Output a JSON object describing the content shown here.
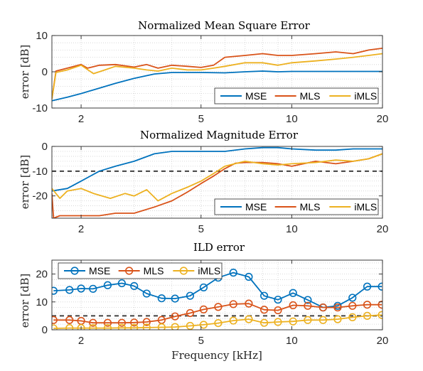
{
  "figure": {
    "xlabel": "Frequency [kHz]",
    "xtick_labels": [
      "2",
      "5",
      "10",
      "20"
    ],
    "colors": {
      "MSE": "#0072BD",
      "MLS": "#D95319",
      "iMLS": "#EDB120",
      "threshold": "#404040",
      "grid": "#d0d0d0"
    }
  },
  "chart_data": [
    {
      "type": "line",
      "title": "Normalized Mean Square Error",
      "ylabel": "error [dB]",
      "xscale": "log",
      "xlim": [
        1.6,
        20
      ],
      "ylim": [
        -10,
        10
      ],
      "yticks": [
        -10,
        0,
        10
      ],
      "ytick_labels": [
        "-10",
        "0",
        "10"
      ],
      "xticks": [
        2,
        5,
        10,
        20
      ],
      "grid": true,
      "legend": {
        "placement": "bottom-right",
        "orientation": "horizontal",
        "entries": [
          "MSE",
          "MLS",
          "iMLS"
        ]
      },
      "series": [
        {
          "name": "MSE",
          "x": [
            1.6,
            1.8,
            2.0,
            2.3,
            2.6,
            3.0,
            3.5,
            4.0,
            5.0,
            6.0,
            7.0,
            8.0,
            9.0,
            10.0,
            12.0,
            14.0,
            16.0,
            18.0,
            20.0
          ],
          "y": [
            -8.0,
            -7.0,
            -6.0,
            -4.5,
            -3.2,
            -1.8,
            -0.6,
            -0.2,
            -0.2,
            -0.3,
            0.0,
            0.2,
            0.0,
            0.1,
            0.1,
            0.1,
            0.1,
            0.1,
            0.1
          ]
        },
        {
          "name": "MLS",
          "x": [
            1.6,
            1.65,
            1.8,
            2.0,
            2.1,
            2.3,
            2.6,
            3.0,
            3.3,
            3.6,
            4.0,
            4.5,
            5.0,
            5.5,
            6.0,
            7.0,
            8.0,
            9.0,
            10.0,
            12.0,
            14.0,
            16.0,
            18.0,
            20.0
          ],
          "y": [
            -7.5,
            0.2,
            1.0,
            2.0,
            1.0,
            1.8,
            2.0,
            1.3,
            2.0,
            1.0,
            1.8,
            1.5,
            1.2,
            1.8,
            4.0,
            4.5,
            5.0,
            4.5,
            4.5,
            5.0,
            5.5,
            5.0,
            6.0,
            6.5
          ]
        },
        {
          "name": "iMLS",
          "x": [
            1.6,
            1.65,
            1.8,
            2.0,
            2.2,
            2.4,
            2.6,
            3.0,
            3.3,
            3.6,
            4.0,
            4.5,
            5.0,
            5.5,
            6.0,
            7.0,
            8.0,
            9.0,
            10.0,
            12.0,
            14.0,
            16.0,
            18.0,
            20.0
          ],
          "y": [
            -7.5,
            -0.2,
            0.5,
            1.8,
            -0.5,
            0.5,
            1.5,
            1.0,
            0.5,
            0.2,
            1.0,
            0.5,
            0.5,
            1.0,
            1.5,
            2.5,
            2.5,
            1.8,
            2.5,
            3.0,
            3.5,
            4.0,
            4.5,
            5.0
          ]
        }
      ]
    },
    {
      "type": "line",
      "title": "Normalized Magnitude Error",
      "ylabel": "error [dB]",
      "xscale": "log",
      "xlim": [
        1.6,
        20
      ],
      "ylim": [
        -29,
        0
      ],
      "yticks": [
        -20,
        -10,
        0
      ],
      "ytick_labels": [
        "-20",
        "-10",
        "0"
      ],
      "xticks": [
        2,
        5,
        10,
        20
      ],
      "grid": true,
      "threshold": -10,
      "legend": {
        "placement": "bottom-right",
        "orientation": "horizontal",
        "entries": [
          "MSE",
          "MLS",
          "iMLS"
        ]
      },
      "series": [
        {
          "name": "MSE",
          "x": [
            1.6,
            1.8,
            2.0,
            2.3,
            2.6,
            3.0,
            3.5,
            4.0,
            5.0,
            6.0,
            7.0,
            8.0,
            9.0,
            10.0,
            12.0,
            14.0,
            16.0,
            18.0,
            20.0
          ],
          "y": [
            -18.0,
            -17.0,
            -14.0,
            -10.0,
            -8.0,
            -6.0,
            -3.0,
            -2.0,
            -2.0,
            -2.0,
            -1.0,
            -0.5,
            -0.5,
            -1.0,
            -1.5,
            -1.5,
            -1.0,
            -1.0,
            -1.0
          ]
        },
        {
          "name": "MLS",
          "x": [
            1.6,
            1.62,
            1.7,
            2.0,
            2.3,
            2.6,
            3.0,
            3.5,
            4.0,
            4.5,
            5.0,
            5.5,
            6.0,
            6.5,
            7.0,
            8.0,
            9.0,
            10.0,
            12.0,
            14.0,
            16.0,
            18.0,
            20.0
          ],
          "y": [
            -19.0,
            -29.0,
            -28.0,
            -28.0,
            -28.0,
            -27.0,
            -27.0,
            -24.5,
            -22.0,
            -18.5,
            -15.0,
            -12.0,
            -9.0,
            -6.8,
            -6.5,
            -6.5,
            -7.0,
            -8.0,
            -6.0,
            -7.0,
            -6.0,
            -5.0,
            -3.0
          ]
        },
        {
          "name": "iMLS",
          "x": [
            1.6,
            1.7,
            1.8,
            2.0,
            2.2,
            2.5,
            2.8,
            3.0,
            3.3,
            3.6,
            4.0,
            4.5,
            5.0,
            5.5,
            6.0,
            7.0,
            8.0,
            9.0,
            10.0,
            12.0,
            14.0,
            16.0,
            18.0,
            20.0
          ],
          "y": [
            -17.0,
            -21.0,
            -18.0,
            -17.0,
            -19.0,
            -21.0,
            -19.0,
            -20.0,
            -17.5,
            -22.0,
            -19.0,
            -16.5,
            -14.0,
            -11.0,
            -8.0,
            -6.0,
            -7.0,
            -7.5,
            -7.0,
            -6.5,
            -5.5,
            -6.0,
            -5.0,
            -3.0
          ]
        }
      ]
    },
    {
      "type": "line",
      "title": "ILD error",
      "ylabel": "error [dB]",
      "xscale": "log",
      "xlim": [
        1.6,
        20
      ],
      "ylim": [
        0,
        25
      ],
      "yticks": [
        0,
        10,
        20
      ],
      "ytick_labels": [
        "0",
        "10",
        "20"
      ],
      "xticks": [
        2,
        5,
        10,
        20
      ],
      "grid": true,
      "markers": "circle",
      "threshold": 5,
      "legend": {
        "placement": "top-left",
        "orientation": "horizontal",
        "entries": [
          "MSE",
          "MLS",
          "iMLS"
        ]
      },
      "series": [
        {
          "name": "MSE",
          "x": [
            1.62,
            1.83,
            2.0,
            2.19,
            2.45,
            2.73,
            3.0,
            3.3,
            3.7,
            4.1,
            4.6,
            5.1,
            5.7,
            6.4,
            7.2,
            8.1,
            9.0,
            10.1,
            11.3,
            12.7,
            14.2,
            15.9,
            17.8,
            19.9
          ],
          "y": [
            14.0,
            14.3,
            14.8,
            14.7,
            16.0,
            16.7,
            15.7,
            13.0,
            11.3,
            11.2,
            12.2,
            15.2,
            18.7,
            20.5,
            19.0,
            12.2,
            10.8,
            13.2,
            10.7,
            8.0,
            8.6,
            11.5,
            15.5,
            15.5
          ]
        },
        {
          "name": "MLS",
          "x": [
            1.62,
            1.83,
            2.0,
            2.19,
            2.45,
            2.73,
            3.0,
            3.3,
            3.7,
            4.1,
            4.6,
            5.1,
            5.7,
            6.4,
            7.2,
            8.1,
            9.0,
            10.1,
            11.3,
            12.7,
            14.2,
            15.9,
            17.8,
            19.9
          ],
          "y": [
            3.5,
            3.5,
            3.2,
            2.5,
            2.5,
            2.5,
            2.6,
            2.8,
            3.5,
            4.8,
            6.0,
            7.3,
            8.2,
            9.2,
            9.4,
            7.2,
            7.0,
            8.8,
            8.6,
            8.0,
            8.0,
            8.6,
            9.0,
            9.0
          ]
        },
        {
          "name": "iMLS",
          "x": [
            1.62,
            1.83,
            2.0,
            2.19,
            2.45,
            2.73,
            3.0,
            3.3,
            3.7,
            4.1,
            4.6,
            5.1,
            5.7,
            6.4,
            7.2,
            8.1,
            9.0,
            10.1,
            11.3,
            12.7,
            14.2,
            15.9,
            17.8,
            19.9
          ],
          "y": [
            0.5,
            0.6,
            0.6,
            0.6,
            0.6,
            0.7,
            0.7,
            0.8,
            0.9,
            1.0,
            1.4,
            1.8,
            2.4,
            3.3,
            3.8,
            2.5,
            2.8,
            3.0,
            3.5,
            3.5,
            3.8,
            4.5,
            5.0,
            5.3
          ]
        }
      ]
    }
  ]
}
